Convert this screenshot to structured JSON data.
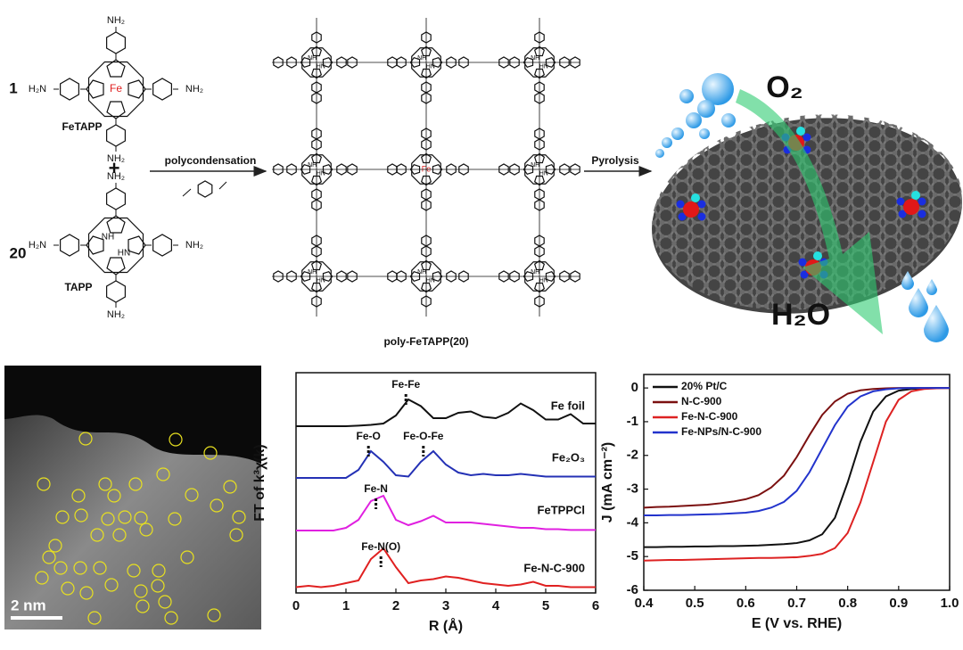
{
  "scheme": {
    "monomer1": {
      "number": "1",
      "name": "FeTAPP",
      "metal": "Fe",
      "amine_right": "NH₂",
      "amine_left": "H₂N"
    },
    "plus": "+",
    "monomer2": {
      "number": "20",
      "name": "TAPP",
      "amine_right": "NH₂",
      "amine_left": "H₂N",
      "nh": "NH",
      "hn": "HN"
    },
    "step1": "polycondensation",
    "polymer": {
      "name": "poly-FeTAPP(20)",
      "nh": "NH",
      "hn": "HN",
      "metal": "Fe"
    },
    "step2": "Pyrolysis",
    "reactant": "O₂",
    "product": "H₂O"
  },
  "image": {
    "scale_bar": "2 nm"
  },
  "chart_data": [
    {
      "type": "line",
      "xlabel": "R (Å)",
      "ylabel": "FT of k³χ(k)",
      "xlim": [
        0,
        6
      ],
      "xticks": [
        0,
        1,
        2,
        3,
        4,
        5,
        6
      ],
      "x": [
        0,
        0.25,
        0.5,
        0.75,
        1,
        1.25,
        1.5,
        1.75,
        2,
        2.25,
        2.5,
        2.75,
        3,
        3.25,
        3.5,
        3.75,
        4,
        4.25,
        4.5,
        4.75,
        5,
        5.25,
        5.5,
        5.75,
        6
      ],
      "series": [
        {
          "name": "Fe foil",
          "color": "#111111",
          "values": [
            0,
            0,
            0,
            0,
            0,
            0.02,
            0.05,
            0.1,
            0.4,
            1.0,
            0.75,
            0.3,
            0.3,
            0.5,
            0.55,
            0.35,
            0.3,
            0.5,
            0.85,
            0.6,
            0.25,
            0.25,
            0.45,
            0.1,
            0.1
          ],
          "peaks": [
            {
              "label": "Fe-Fe",
              "x": 2.2
            }
          ]
        },
        {
          "name": "Fe₂O₃",
          "color": "#2431b5",
          "values": [
            0,
            0,
            0,
            0,
            0,
            0.3,
            1.0,
            0.6,
            0.1,
            0.05,
            0.6,
            1.0,
            0.5,
            0.2,
            0.1,
            0.15,
            0.1,
            0.1,
            0.15,
            0.1,
            0.05,
            0.05,
            0.05,
            0.05,
            0.05
          ],
          "peaks": [
            {
              "label": "Fe-O",
              "x": 1.45
            },
            {
              "label": "Fe-O-Fe",
              "x": 2.55
            }
          ]
        },
        {
          "name": "FeTPPCl",
          "color": "#e020e0",
          "values": [
            0,
            0,
            0,
            0,
            0.1,
            0.4,
            1.1,
            1.3,
            0.4,
            0.2,
            0.35,
            0.55,
            0.3,
            0.3,
            0.3,
            0.25,
            0.2,
            0.15,
            0.1,
            0.1,
            0.05,
            0.05,
            0.02,
            0.02,
            0.02
          ],
          "peaks": [
            {
              "label": "Fe-N",
              "x": 1.6
            }
          ]
        },
        {
          "name": "Fe-N-C-900",
          "color": "#e02020",
          "values": [
            0.05,
            0.1,
            0.05,
            0.1,
            0.2,
            0.3,
            1.1,
            1.5,
            0.8,
            0.2,
            0.3,
            0.35,
            0.45,
            0.4,
            0.3,
            0.2,
            0.15,
            0.1,
            0.15,
            0.25,
            0.1,
            0.1,
            0.05,
            0.05,
            0.05
          ],
          "peaks": [
            {
              "label": "Fe-N(O)",
              "x": 1.7
            }
          ]
        }
      ]
    },
    {
      "type": "line",
      "xlabel": "E (V vs. RHE)",
      "ylabel": "J (mA cm⁻²)",
      "xlim": [
        0.4,
        1.0
      ],
      "ylim": [
        -6,
        0.4
      ],
      "xticks": [
        0.4,
        0.5,
        0.6,
        0.7,
        0.8,
        0.9,
        {
          "value": 1,
          "label": "1.0"
        }
      ],
      "yticks": [
        0,
        -1,
        -2,
        -3,
        -4,
        -5,
        -6
      ],
      "legend": "upper left",
      "x": [
        0.4,
        0.425,
        0.45,
        0.475,
        0.5,
        0.525,
        0.55,
        0.575,
        0.6,
        0.625,
        0.65,
        0.675,
        0.7,
        0.725,
        0.75,
        0.775,
        0.8,
        0.825,
        0.85,
        0.875,
        0.9,
        0.925,
        0.95,
        0.975,
        1.0
      ],
      "series": [
        {
          "name": "20% Pt/C",
          "color": "#111111",
          "values": [
            -4.72,
            -4.72,
            -4.71,
            -4.71,
            -4.7,
            -4.7,
            -4.69,
            -4.69,
            -4.68,
            -4.67,
            -4.65,
            -4.63,
            -4.6,
            -4.52,
            -4.34,
            -3.85,
            -2.8,
            -1.6,
            -0.7,
            -0.25,
            -0.08,
            -0.03,
            -0.01,
            0,
            0
          ]
        },
        {
          "name": "N-C-900",
          "color": "#7b1010",
          "values": [
            -3.55,
            -3.53,
            -3.52,
            -3.5,
            -3.48,
            -3.46,
            -3.42,
            -3.37,
            -3.3,
            -3.18,
            -2.95,
            -2.6,
            -2.05,
            -1.4,
            -0.8,
            -0.4,
            -0.17,
            -0.07,
            -0.03,
            -0.01,
            0,
            0,
            0,
            0,
            0
          ]
        },
        {
          "name": "Fe-N-C-900",
          "color": "#dd2222",
          "values": [
            -5.12,
            -5.11,
            -5.1,
            -5.1,
            -5.09,
            -5.08,
            -5.07,
            -5.06,
            -5.05,
            -5.04,
            -5.04,
            -5.03,
            -5.02,
            -4.98,
            -4.92,
            -4.75,
            -4.3,
            -3.4,
            -2.2,
            -1.0,
            -0.35,
            -0.1,
            -0.03,
            -0.01,
            0
          ]
        },
        {
          "name": "Fe-NPs/N-C-900",
          "color": "#2233cc",
          "values": [
            -3.78,
            -3.78,
            -3.77,
            -3.77,
            -3.76,
            -3.75,
            -3.74,
            -3.72,
            -3.7,
            -3.65,
            -3.55,
            -3.38,
            -3.05,
            -2.5,
            -1.8,
            -1.1,
            -0.55,
            -0.25,
            -0.1,
            -0.04,
            -0.01,
            0,
            0,
            0,
            0
          ]
        }
      ]
    }
  ]
}
